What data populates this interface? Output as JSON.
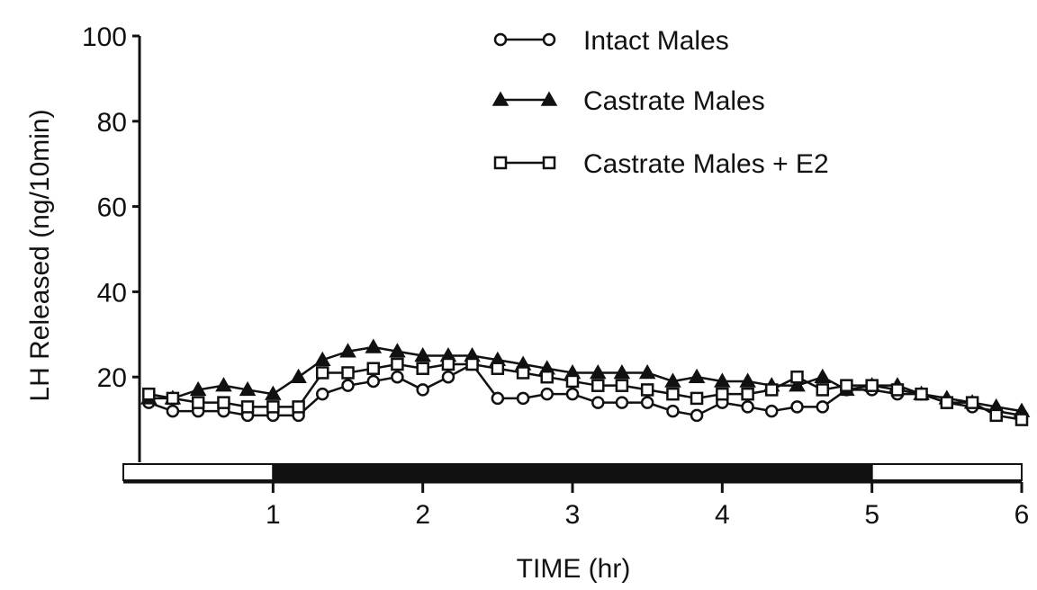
{
  "chart_data": {
    "type": "line",
    "title": "",
    "xlabel": "TIME (hr)",
    "ylabel": "LH Released (ng/10min)",
    "xlim": [
      0,
      6
    ],
    "ylim": [
      0,
      100
    ],
    "x_ticks": [
      "1",
      "2",
      "3",
      "4",
      "5",
      "6"
    ],
    "y_ticks": [
      "20",
      "40",
      "60",
      "80",
      "100"
    ],
    "grid": false,
    "legend_position": "top-right",
    "light_dark_bar": [
      {
        "phase": "light",
        "start": 0,
        "end": 1
      },
      {
        "phase": "dark",
        "start": 1,
        "end": 5
      },
      {
        "phase": "light",
        "start": 5,
        "end": 6
      }
    ],
    "x": [
      0.17,
      0.33,
      0.5,
      0.67,
      0.83,
      1.0,
      1.17,
      1.33,
      1.5,
      1.67,
      1.83,
      2.0,
      2.17,
      2.33,
      2.5,
      2.67,
      2.83,
      3.0,
      3.17,
      3.33,
      3.5,
      3.67,
      3.83,
      4.0,
      4.17,
      4.33,
      4.5,
      4.67,
      4.83,
      5.0,
      5.17,
      5.33,
      5.5,
      5.67,
      5.83,
      6.0
    ],
    "series": [
      {
        "name": "Intact Males",
        "marker": "circle",
        "values": [
          14,
          12,
          12,
          12,
          11,
          11,
          11,
          16,
          18,
          19,
          20,
          17,
          20,
          23,
          15,
          15,
          16,
          16,
          14,
          14,
          14,
          12,
          11,
          14,
          13,
          12,
          13,
          13,
          17,
          17,
          16,
          16,
          14,
          13,
          12,
          11
        ]
      },
      {
        "name": "Castrate  Males",
        "marker": "filled-triangle",
        "values": [
          15,
          15,
          17,
          18,
          17,
          16,
          20,
          24,
          26,
          27,
          26,
          25,
          25,
          25,
          24,
          23,
          22,
          21,
          21,
          21,
          21,
          19,
          20,
          19,
          19,
          18,
          18,
          20,
          17,
          18,
          18,
          16,
          15,
          14,
          13,
          12
        ]
      },
      {
        "name": "Castrate Males + E2",
        "marker": "open-square",
        "values": [
          16,
          15,
          14,
          14,
          13,
          13,
          13,
          21,
          21,
          22,
          23,
          22,
          23,
          23,
          22,
          21,
          20,
          19,
          18,
          18,
          17,
          16,
          15,
          16,
          16,
          17,
          20,
          17,
          18,
          18,
          17,
          16,
          14,
          14,
          11,
          10
        ]
      }
    ]
  }
}
